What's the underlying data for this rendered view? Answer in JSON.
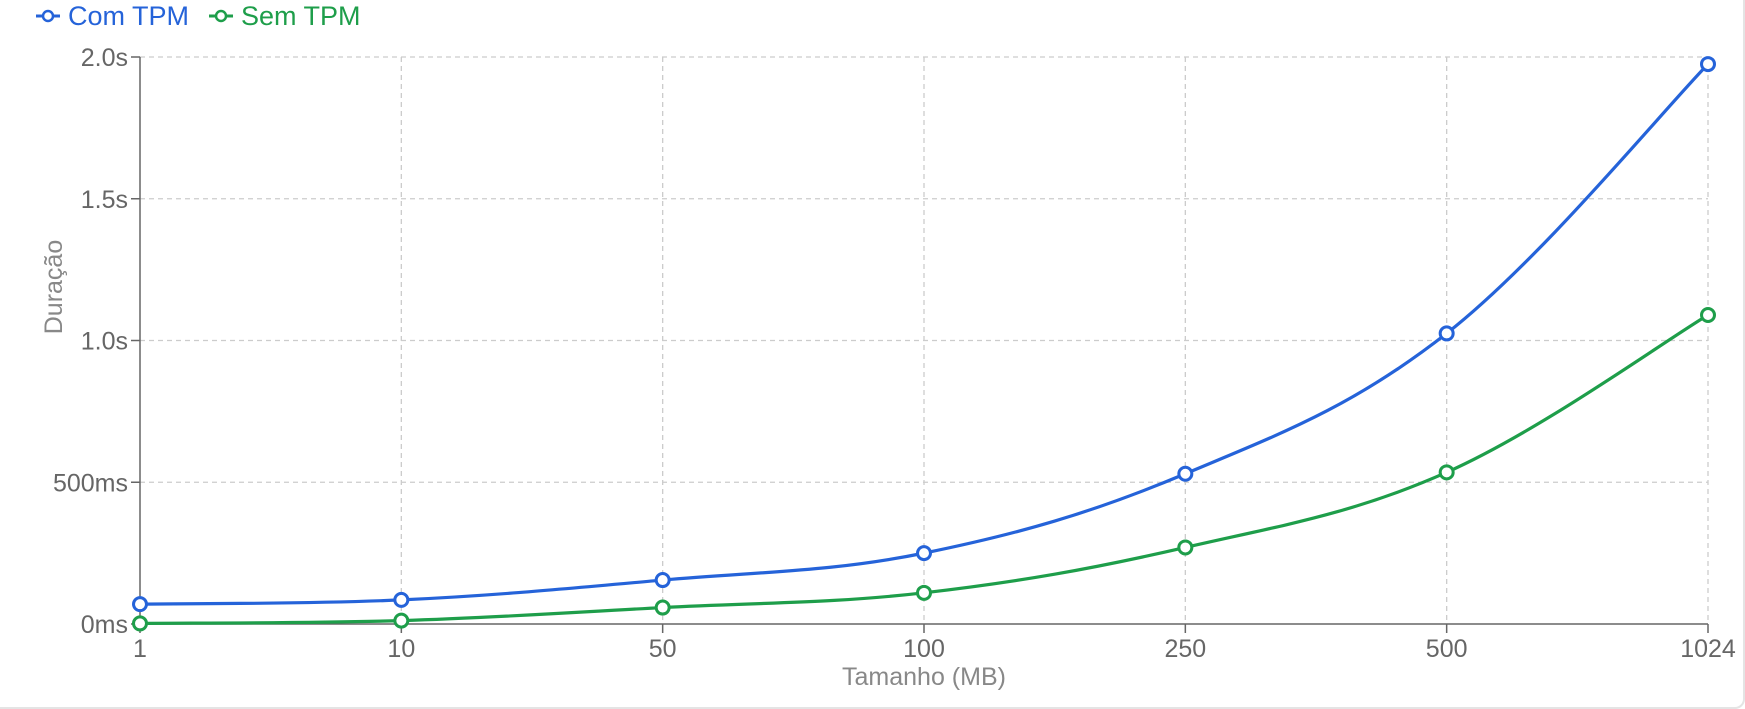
{
  "chart_data": {
    "type": "line",
    "xlabel": "Tamanho (MB)",
    "ylabel": "Duração",
    "categories": [
      "1",
      "10",
      "50",
      "100",
      "250",
      "500",
      "1024"
    ],
    "yticks": [
      "0ms",
      "500ms",
      "1.0s",
      "1.5s",
      "2.0s"
    ],
    "ylim": [
      0,
      2000
    ],
    "y_unit": "ms",
    "grid": true,
    "legend_position": "top-left",
    "series": [
      {
        "name": "Com TPM",
        "color": "#2563d9",
        "values": [
          70,
          85,
          155,
          250,
          530,
          1025,
          1975
        ]
      },
      {
        "name": "Sem TPM",
        "color": "#1e9e4a",
        "values": [
          2,
          12,
          58,
          110,
          270,
          535,
          1090
        ]
      }
    ]
  }
}
